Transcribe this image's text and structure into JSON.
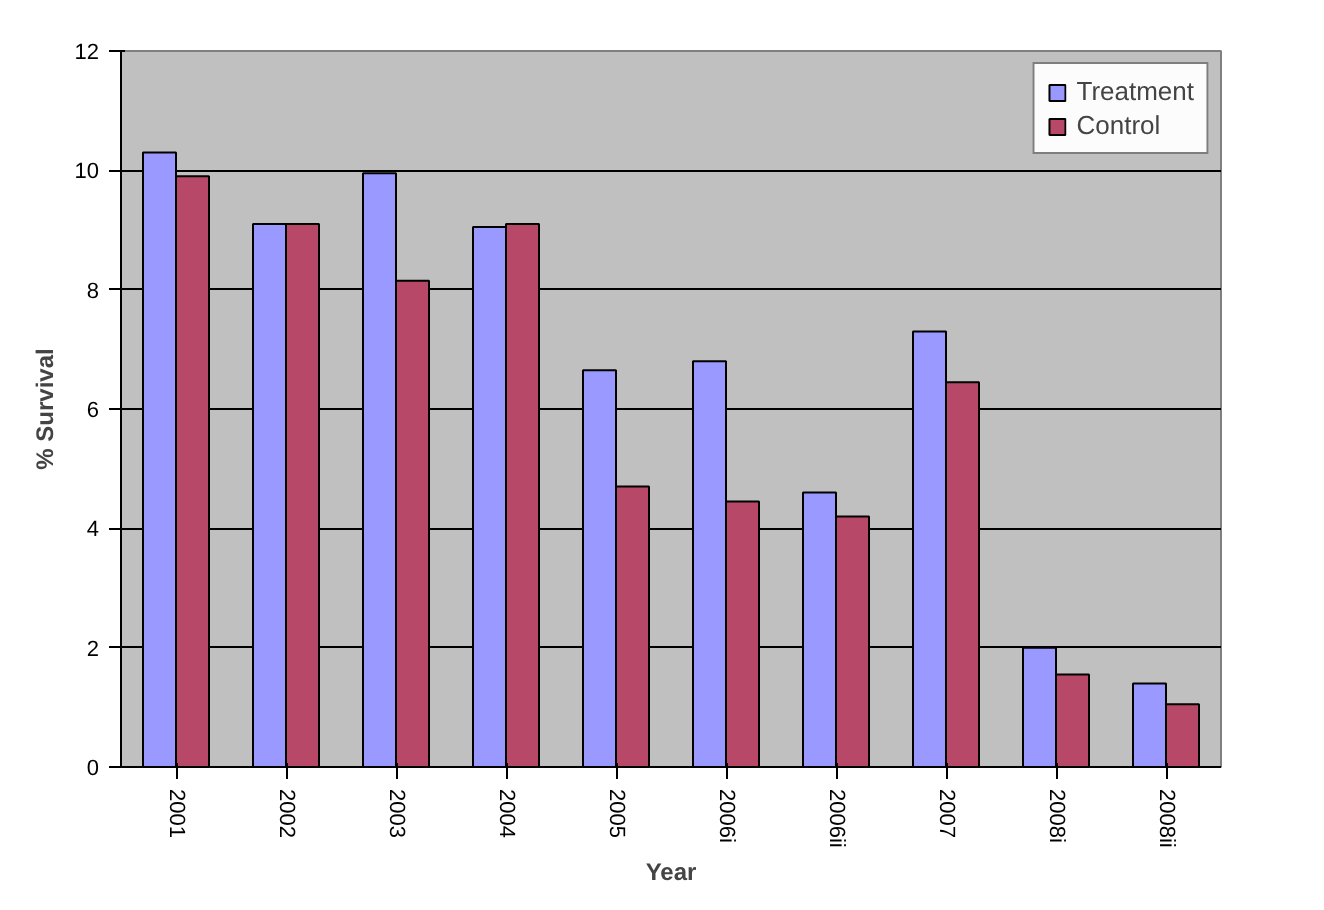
{
  "chart_data": {
    "type": "bar",
    "xlabel": "Year",
    "ylabel": "% Survival",
    "categories": [
      "2001",
      "2002",
      "2003",
      "2004",
      "2005",
      "2006i",
      "2006ii",
      "2007",
      "2008i",
      "2008ii"
    ],
    "series": [
      {
        "name": "Treatment",
        "color": "#9999ff",
        "values": [
          10.3,
          9.1,
          9.95,
          9.05,
          6.65,
          6.8,
          4.6,
          7.3,
          2.0,
          1.4
        ]
      },
      {
        "name": "Control",
        "color": "#b84868",
        "values": [
          9.9,
          9.1,
          8.15,
          9.1,
          4.7,
          4.45,
          4.2,
          6.45,
          1.55,
          1.05
        ]
      }
    ],
    "ylim": [
      0,
      12
    ],
    "yticks": [
      0,
      2,
      4,
      6,
      8,
      10,
      12
    ],
    "grid": "y",
    "legend": "top right"
  }
}
